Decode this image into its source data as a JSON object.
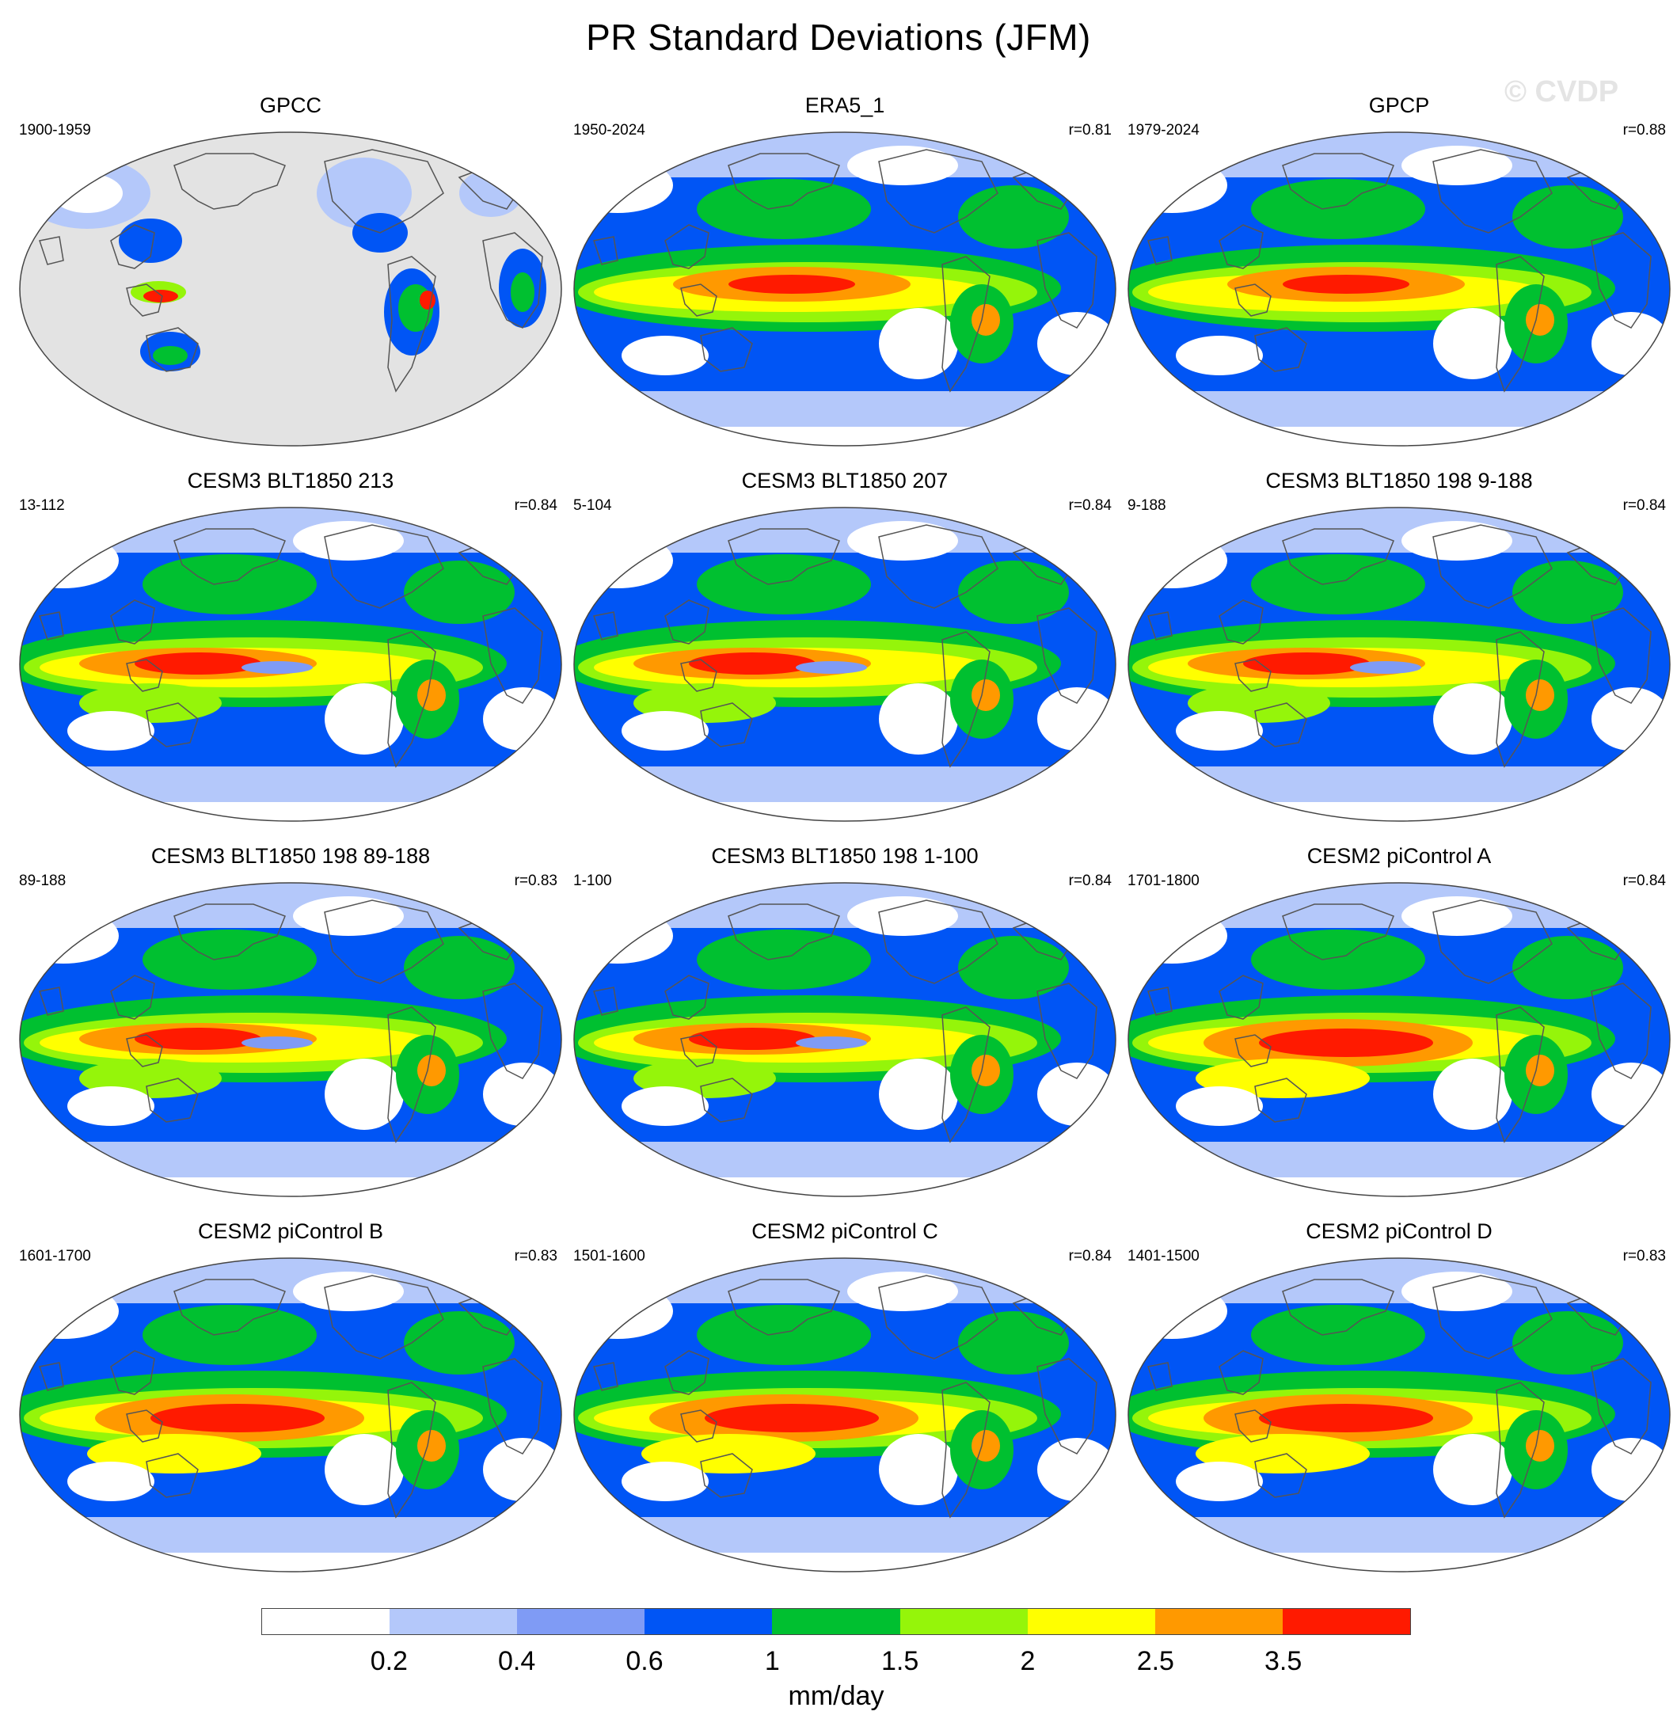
{
  "title": "PR Standard Deviations (JFM)",
  "watermark": "© CVDP",
  "panels": [
    {
      "title": "GPCC",
      "period": "1900-1959",
      "corr": "",
      "variant": "obs-land"
    },
    {
      "title": "ERA5_1",
      "period": "1950-2024",
      "corr": "r=0.81",
      "variant": "reanalysis"
    },
    {
      "title": "GPCP",
      "period": "1979-2024",
      "corr": "r=0.88",
      "variant": "reanalysis"
    },
    {
      "title": "CESM3 BLT1850 213",
      "period": "13-112",
      "corr": "r=0.84",
      "variant": "cesm3"
    },
    {
      "title": "CESM3 BLT1850 207",
      "period": "5-104",
      "corr": "r=0.84",
      "variant": "cesm3"
    },
    {
      "title": "CESM3 BLT1850 198 9-188",
      "period": "9-188",
      "corr": "r=0.84",
      "variant": "cesm3"
    },
    {
      "title": "CESM3 BLT1850 198 89-188",
      "period": "89-188",
      "corr": "r=0.83",
      "variant": "cesm3"
    },
    {
      "title": "CESM3 BLT1850 198 1-100",
      "period": "1-100",
      "corr": "r=0.84",
      "variant": "cesm3"
    },
    {
      "title": "CESM2 piControl A",
      "period": "1701-1800",
      "corr": "r=0.84",
      "variant": "cesm2"
    },
    {
      "title": "CESM2 piControl B",
      "period": "1601-1700",
      "corr": "r=0.83",
      "variant": "cesm2"
    },
    {
      "title": "CESM2 piControl C",
      "period": "1501-1600",
      "corr": "r=0.84",
      "variant": "cesm2"
    },
    {
      "title": "CESM2 piControl D",
      "period": "1401-1500",
      "corr": "r=0.83",
      "variant": "cesm2"
    }
  ],
  "colorbar": {
    "colors": [
      "#ffffff",
      "#b4c8fa",
      "#7f9bf5",
      "#0055f5",
      "#00c030",
      "#95f50a",
      "#ffff00",
      "#ff9900",
      "#ff1a00"
    ],
    "ticks": [
      "0.2",
      "0.4",
      "0.6",
      "1",
      "1.5",
      "2",
      "2.5",
      "3.5"
    ],
    "units": "mm/day"
  },
  "missing_color": "#e3e3e3"
}
